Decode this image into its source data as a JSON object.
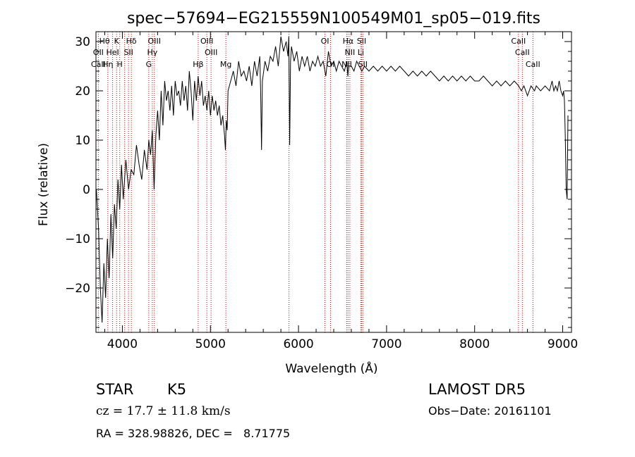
{
  "chart_data": {
    "type": "line",
    "title": "spec−57694−EG215559N100549M01_sp05−019.fits",
    "xlabel": "Wavelength (Å)",
    "ylabel": "Flux (relative)",
    "xlim": [
      3700,
      9100
    ],
    "ylim": [
      -29,
      32
    ],
    "xticks": [
      4000,
      5000,
      6000,
      7000,
      8000,
      9000
    ],
    "xtick_labels": [
      "4000",
      "5000",
      "6000",
      "7000",
      "8000",
      "9000"
    ],
    "yticks": [
      -20,
      -10,
      0,
      10,
      20,
      30
    ],
    "ytick_labels": [
      "−20",
      "−10",
      "0",
      "10",
      "20",
      "30"
    ],
    "grid": false,
    "series": [
      {
        "x": [
          3705,
          3730,
          3750,
          3770,
          3790,
          3810,
          3830,
          3850,
          3870,
          3890,
          3910,
          3930,
          3950,
          3970,
          3990,
          4010,
          4040,
          4070,
          4100,
          4130,
          4160,
          4190,
          4220,
          4250,
          4280,
          4300,
          4320,
          4340,
          4360,
          4380,
          4400,
          4420,
          4440,
          4460,
          4480,
          4500,
          4520,
          4540,
          4560,
          4580,
          4600,
          4620,
          4640,
          4660,
          4680,
          4700,
          4720,
          4740,
          4760,
          4780,
          4800,
          4820,
          4840,
          4860,
          4880,
          4900,
          4920,
          4940,
          4960,
          4980,
          5000,
          5020,
          5040,
          5060,
          5080,
          5100,
          5120,
          5140,
          5160,
          5170,
          5180,
          5190,
          5200,
          5230,
          5260,
          5290,
          5320,
          5350,
          5380,
          5410,
          5440,
          5470,
          5500,
          5530,
          5560,
          5570,
          5580,
          5590,
          5620,
          5650,
          5680,
          5710,
          5740,
          5770,
          5800,
          5830,
          5860,
          5880,
          5890,
          5900,
          5910,
          5920,
          5950,
          5980,
          6010,
          6040,
          6070,
          6100,
          6130,
          6160,
          6190,
          6220,
          6250,
          6280,
          6310,
          6340,
          6370,
          6400,
          6430,
          6460,
          6490,
          6520,
          6550,
          6560,
          6570,
          6600,
          6630,
          6660,
          6690,
          6720,
          6750,
          6800,
          6850,
          6900,
          6950,
          7000,
          7050,
          7100,
          7150,
          7200,
          7250,
          7300,
          7350,
          7400,
          7450,
          7500,
          7550,
          7600,
          7650,
          7700,
          7750,
          7800,
          7850,
          7900,
          7950,
          8000,
          8050,
          8100,
          8150,
          8200,
          8250,
          8300,
          8350,
          8400,
          8450,
          8500,
          8530,
          8560,
          8600,
          8640,
          8680,
          8700,
          8750,
          8800,
          8850,
          8880,
          8900,
          8920,
          8940,
          8960,
          8980,
          9000,
          9010,
          9020,
          9030,
          9040,
          9050,
          9060
        ],
        "y": [
          0,
          -8,
          -20,
          -27,
          -15,
          -22,
          -10,
          -18,
          -5,
          -14,
          -3,
          -8,
          2,
          -4,
          5,
          -2,
          6,
          0,
          4,
          3,
          9,
          5,
          2,
          8,
          4,
          10,
          7,
          12,
          0,
          11,
          16,
          10,
          20,
          13,
          22,
          18,
          20,
          16,
          21,
          15,
          22,
          19,
          20,
          17,
          22,
          18,
          21,
          16,
          24,
          20,
          14,
          22,
          18,
          23,
          19,
          22,
          17,
          19,
          16,
          20,
          15,
          19,
          16,
          18,
          15,
          17,
          13,
          15,
          11,
          8,
          14,
          12,
          20,
          22,
          24,
          21,
          26,
          23,
          24,
          22,
          25,
          21,
          26,
          23,
          27,
          20,
          8,
          22,
          26,
          24,
          27,
          26,
          29,
          25,
          31,
          28,
          30,
          27,
          31,
          9,
          26,
          29,
          26,
          28,
          24,
          27,
          25,
          27,
          24,
          26,
          25,
          27,
          25,
          26,
          23,
          28,
          25,
          26,
          24,
          26,
          25,
          24,
          26,
          23,
          25,
          25,
          24,
          26,
          25,
          24,
          25,
          24,
          25,
          24,
          25,
          24,
          25,
          24,
          25,
          24,
          23,
          24,
          23,
          24,
          23,
          24,
          23,
          22,
          23,
          22,
          23,
          22,
          23,
          22,
          23,
          22,
          22,
          23,
          22,
          21,
          22,
          21,
          22,
          21,
          22,
          21,
          20,
          21,
          19,
          21,
          20,
          21,
          20,
          21,
          20,
          22,
          20,
          21,
          20,
          22,
          20,
          19,
          20,
          18,
          10,
          0,
          -2,
          15
        ]
      }
    ],
    "line_markers": {
      "wavelengths": [
        3727,
        3835,
        3889,
        3934,
        3970,
        4026,
        4070,
        4102,
        4300,
        4340,
        4363,
        4861,
        4959,
        5007,
        5175,
        5892,
        6300,
        6364,
        6548,
        6563,
        6583,
        6707,
        6716,
        6731,
        8498,
        8542,
        8662
      ],
      "labels": [
        {
          "text": "Hθ",
          "x": 3797,
          "row": 0
        },
        {
          "text": "K",
          "x": 3934,
          "row": 0
        },
        {
          "text": "Hδ",
          "x": 4102,
          "row": 0
        },
        {
          "text": "OIII",
          "x": 4363,
          "row": 0
        },
        {
          "text": "OIII",
          "x": 4959,
          "row": 0
        },
        {
          "text": "OI",
          "x": 6300,
          "row": 0
        },
        {
          "text": "Hα",
          "x": 6563,
          "row": 0
        },
        {
          "text": "SII",
          "x": 6716,
          "row": 0
        },
        {
          "text": "CaII",
          "x": 8498,
          "row": 0
        },
        {
          "text": "OII",
          "x": 3727,
          "row": 1
        },
        {
          "text": "HeI",
          "x": 3889,
          "row": 1
        },
        {
          "text": "SII",
          "x": 4070,
          "row": 1
        },
        {
          "text": "Hγ",
          "x": 4340,
          "row": 1
        },
        {
          "text": "OIII",
          "x": 5007,
          "row": 1
        },
        {
          "text": "NII",
          "x": 6583,
          "row": 1
        },
        {
          "text": "Li",
          "x": 6707,
          "row": 1
        },
        {
          "text": "CaII",
          "x": 8542,
          "row": 1
        },
        {
          "text": "CaII",
          "x": 3727,
          "row": 2
        },
        {
          "text": "Hη",
          "x": 3835,
          "row": 2
        },
        {
          "text": "H",
          "x": 3970,
          "row": 2
        },
        {
          "text": "G",
          "x": 4300,
          "row": 2
        },
        {
          "text": "Hβ",
          "x": 4861,
          "row": 2
        },
        {
          "text": "Mg",
          "x": 5175,
          "row": 2
        },
        {
          "text": "OI",
          "x": 6364,
          "row": 2
        },
        {
          "text": "NII",
          "x": 6548,
          "row": 2
        },
        {
          "text": "SII",
          "x": 6731,
          "row": 2
        },
        {
          "text": "CaII",
          "x": 8662,
          "row": 2
        }
      ]
    }
  },
  "info": {
    "object_class": "STAR",
    "subclass": "K5",
    "survey": "LAMOST DR5",
    "cz": "cz = 17.7 ± 11.8 km/s",
    "obs_date": "Obs−Date: 20161101",
    "coords": "RA = 328.98826, DEC =   8.71775"
  }
}
